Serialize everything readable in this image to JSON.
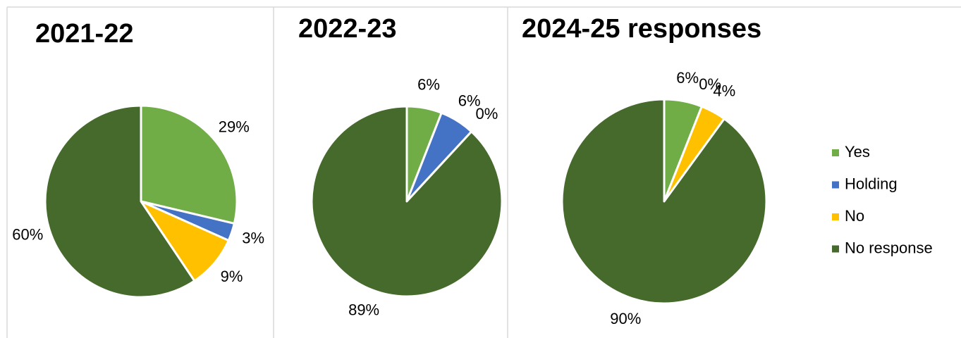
{
  "chart_data": [
    {
      "type": "pie",
      "title": "2021-22",
      "categories": [
        "Yes",
        "Holding",
        "No",
        "No response"
      ],
      "values": [
        29,
        3,
        9,
        60
      ],
      "value_labels": [
        "29%",
        "3%",
        "9%",
        "60%"
      ],
      "colors": [
        "#70ad47",
        "#4472c4",
        "#ffc000",
        "#456a2c"
      ]
    },
    {
      "type": "pie",
      "title": "2022-23",
      "categories": [
        "Yes",
        "Holding",
        "No",
        "No response"
      ],
      "values": [
        6,
        6,
        0,
        89
      ],
      "value_labels": [
        "6%",
        "6%",
        "0%",
        "89%"
      ],
      "colors": [
        "#70ad47",
        "#4472c4",
        "#ffc000",
        "#456a2c"
      ]
    },
    {
      "type": "pie",
      "title": "2024-25 responses",
      "categories": [
        "Yes",
        "Holding",
        "No",
        "No response"
      ],
      "values": [
        6,
        0,
        4,
        90
      ],
      "value_labels": [
        "6%",
        "0%",
        "4%",
        "90%"
      ],
      "colors": [
        "#70ad47",
        "#4472c4",
        "#ffc000",
        "#456a2c"
      ]
    }
  ]
}
